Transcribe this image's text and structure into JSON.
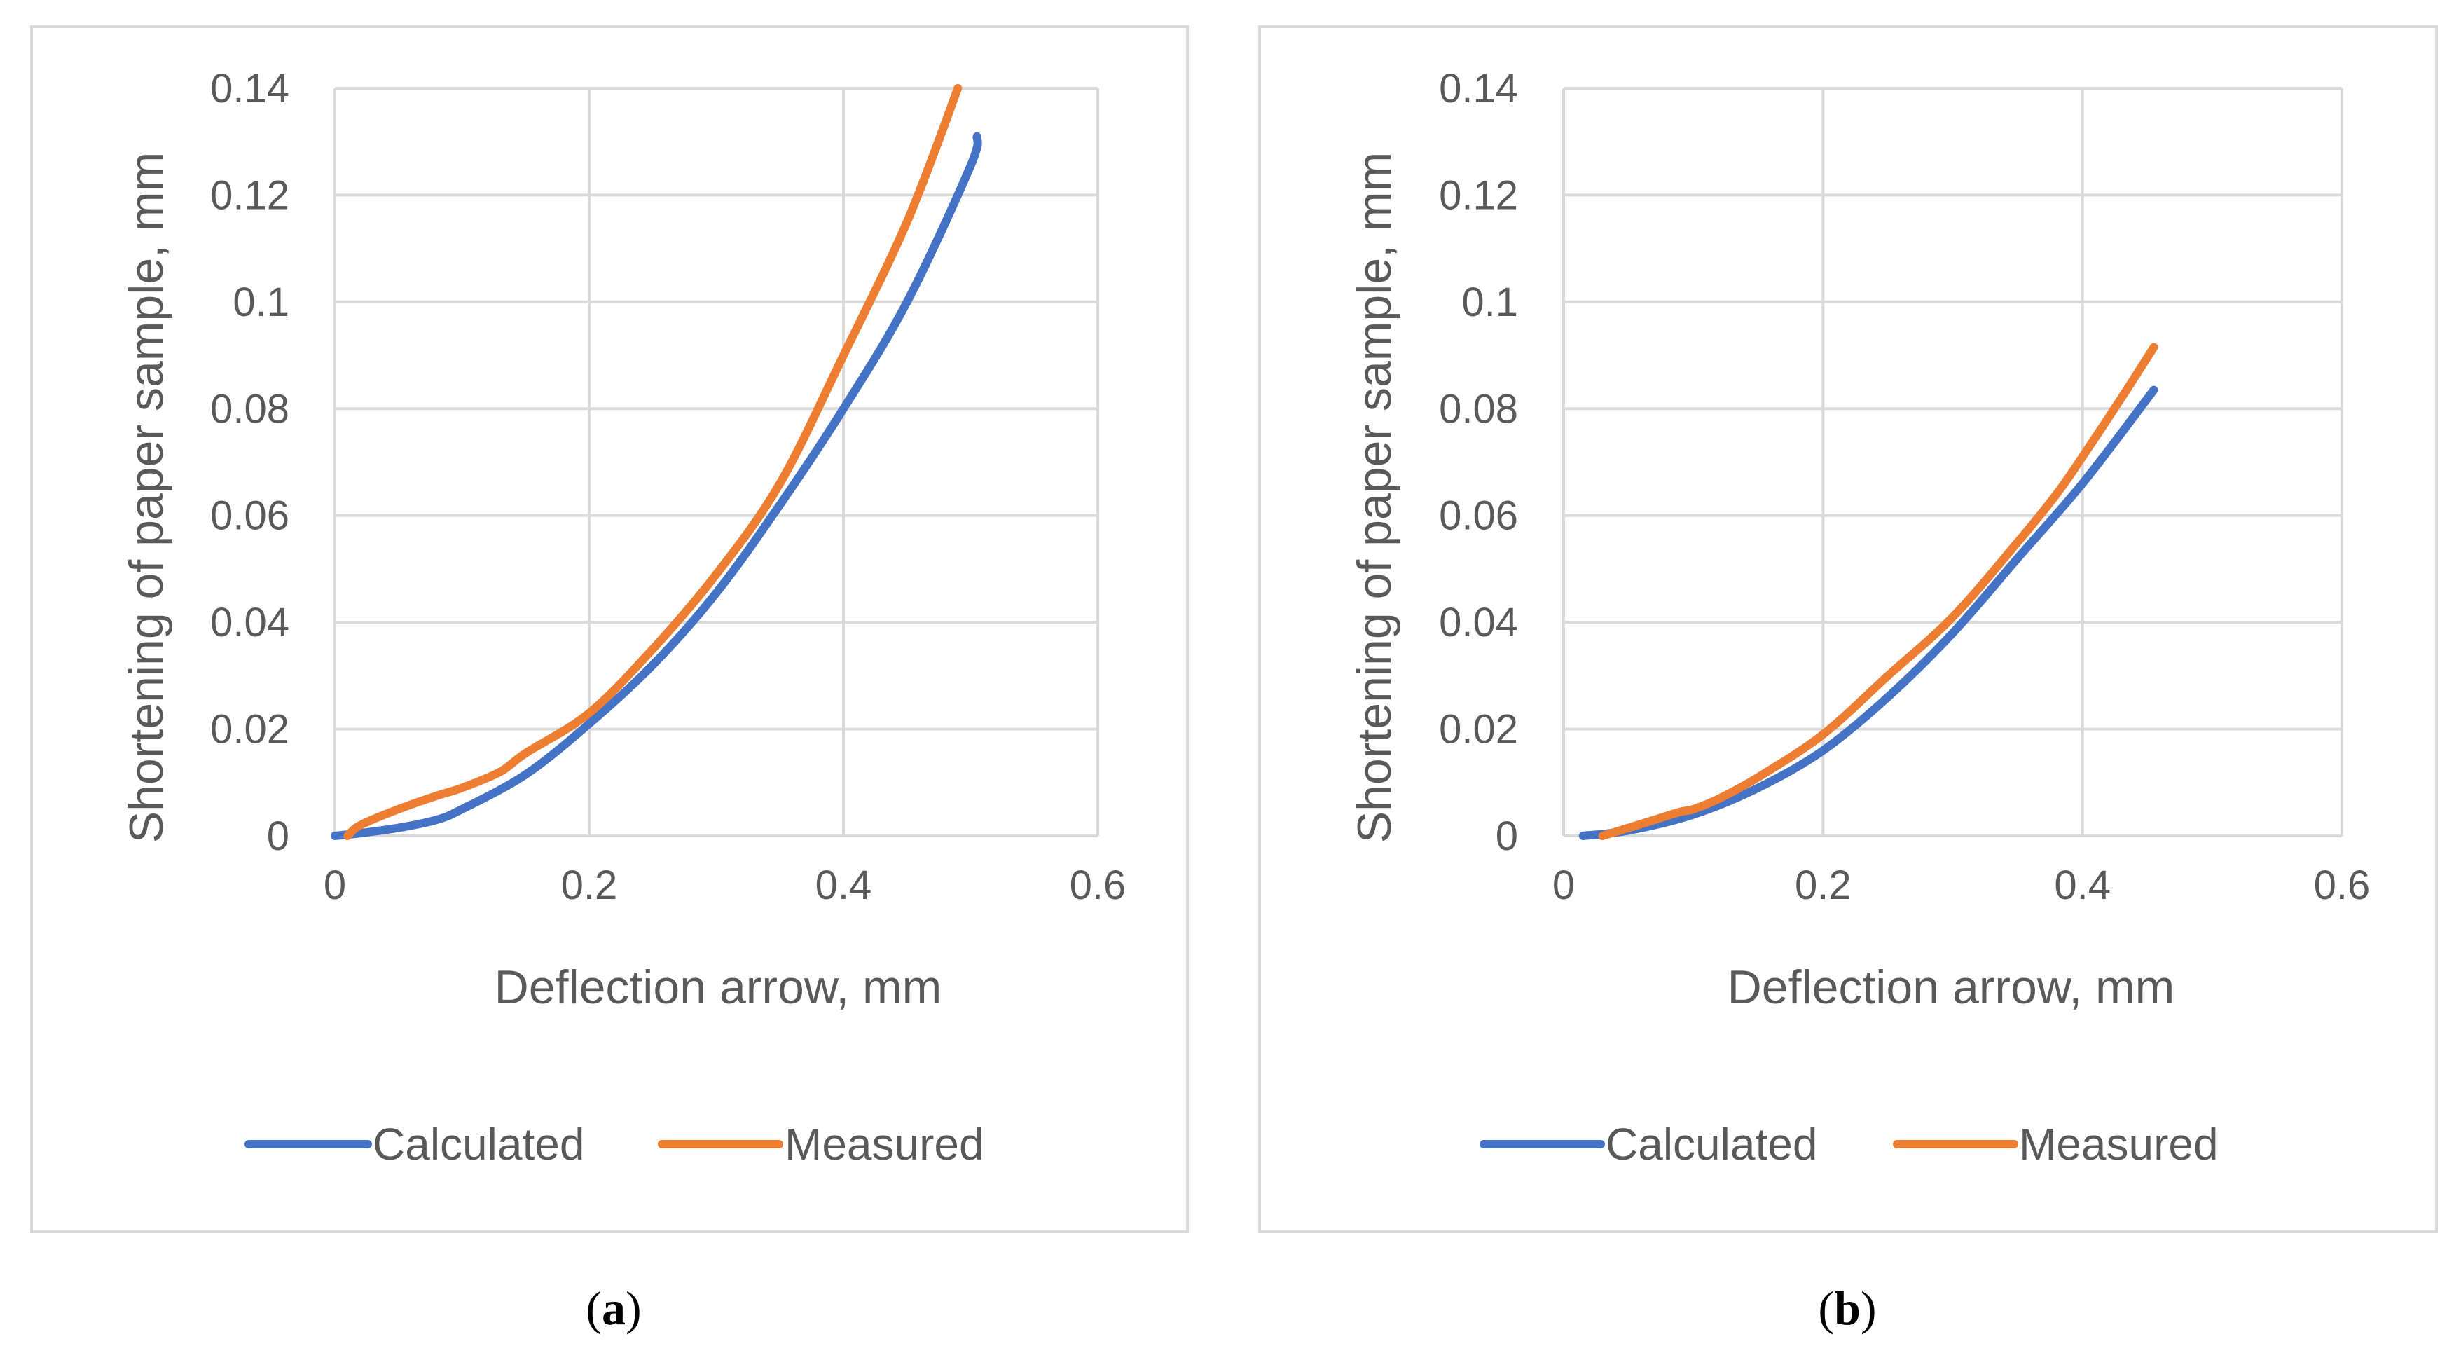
{
  "colors": {
    "calculated": "#4472C4",
    "measured": "#ED7D31",
    "grid": "#D9D9D9",
    "border": "#D9D9D9",
    "text": "#595959"
  },
  "chart_data": [
    {
      "type": "line",
      "panel_label": "a",
      "title": "",
      "xlabel": "Deflection arrow, mm",
      "ylabel": "Shortening of paper sample, mm",
      "xlim": [
        0,
        0.6
      ],
      "ylim": [
        0,
        0.14
      ],
      "xticks": [
        "0",
        "0.2",
        "0.4",
        "0.6"
      ],
      "yticks": [
        "0",
        "0.02",
        "0.04",
        "0.06",
        "0.08",
        "0.1",
        "0.12",
        "0.14"
      ],
      "grid": true,
      "legend_position": "bottom",
      "series": [
        {
          "name": "Calculated",
          "x": [
            0.0,
            0.02,
            0.05,
            0.08,
            0.1,
            0.15,
            0.2,
            0.25,
            0.3,
            0.35,
            0.4,
            0.45,
            0.5,
            0.505
          ],
          "y": [
            0.0,
            0.0005,
            0.0015,
            0.003,
            0.005,
            0.0115,
            0.021,
            0.032,
            0.0455,
            0.062,
            0.08,
            0.1,
            0.1255,
            0.131
          ]
        },
        {
          "name": "Measured",
          "x": [
            0.01,
            0.02,
            0.05,
            0.08,
            0.1,
            0.13,
            0.15,
            0.2,
            0.25,
            0.3,
            0.35,
            0.4,
            0.45,
            0.49
          ],
          "y": [
            0.0,
            0.002,
            0.005,
            0.0075,
            0.009,
            0.012,
            0.0155,
            0.023,
            0.035,
            0.049,
            0.066,
            0.09,
            0.115,
            0.14
          ]
        }
      ]
    },
    {
      "type": "line",
      "panel_label": "b",
      "title": "",
      "xlabel": "Deflection arrow, mm",
      "ylabel": "Shortening of paper sample, mm",
      "xlim": [
        0,
        0.6
      ],
      "ylim": [
        0,
        0.14
      ],
      "xticks": [
        "0",
        "0.2",
        "0.4",
        "0.6"
      ],
      "yticks": [
        "0",
        "0.02",
        "0.04",
        "0.06",
        "0.08",
        "0.1",
        "0.12",
        "0.14"
      ],
      "grid": true,
      "legend_position": "bottom",
      "series": [
        {
          "name": "Calculated",
          "x": [
            0.015,
            0.05,
            0.1,
            0.15,
            0.2,
            0.25,
            0.3,
            0.35,
            0.4,
            0.455
          ],
          "y": [
            0.0,
            0.001,
            0.004,
            0.009,
            0.016,
            0.026,
            0.038,
            0.052,
            0.066,
            0.0835
          ]
        },
        {
          "name": "Measured",
          "x": [
            0.03,
            0.05,
            0.07,
            0.09,
            0.1,
            0.12,
            0.15,
            0.2,
            0.25,
            0.3,
            0.35,
            0.38,
            0.4,
            0.43,
            0.455
          ],
          "y": [
            0.0,
            0.0015,
            0.003,
            0.0045,
            0.005,
            0.007,
            0.011,
            0.019,
            0.03,
            0.041,
            0.055,
            0.064,
            0.071,
            0.082,
            0.0915
          ]
        }
      ]
    }
  ]
}
